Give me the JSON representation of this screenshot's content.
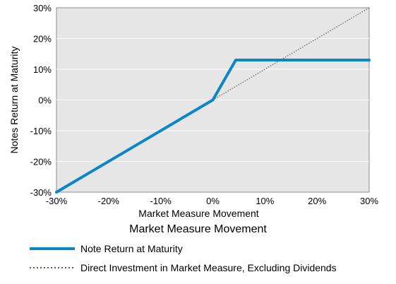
{
  "chart_data": {
    "type": "line",
    "title": "",
    "xlabel": "Market Measure Movement",
    "ylabel": "Notes Return at Maturity",
    "subtitle": "Market Measure Movement",
    "xlim": [
      -30,
      30
    ],
    "ylim": [
      -30,
      30
    ],
    "x_ticks": [
      "-30%",
      "-20%",
      "-10%",
      "0%",
      "10%",
      "20%",
      "30%"
    ],
    "y_ticks": [
      "30%",
      "20%",
      "10%",
      "0%",
      "-10%",
      "-20%",
      "-30%"
    ],
    "x_tick_values": [
      -30,
      -20,
      -10,
      0,
      10,
      20,
      30
    ],
    "y_tick_values": [
      30,
      20,
      10,
      0,
      -10,
      -20,
      -30
    ],
    "grid": true,
    "legend_position": "bottom",
    "series": [
      {
        "name": "Note Return at Maturity",
        "color": "#0a86c9",
        "style": "solid",
        "x": [
          -30,
          0,
          4.4,
          30
        ],
        "y": [
          -30,
          0,
          13,
          13
        ]
      },
      {
        "name": "Direct Investment in Market Measure, Excluding Dividends",
        "color": "#6b5a4e",
        "style": "dotted",
        "x": [
          0,
          30
        ],
        "y": [
          0,
          30
        ]
      }
    ]
  }
}
